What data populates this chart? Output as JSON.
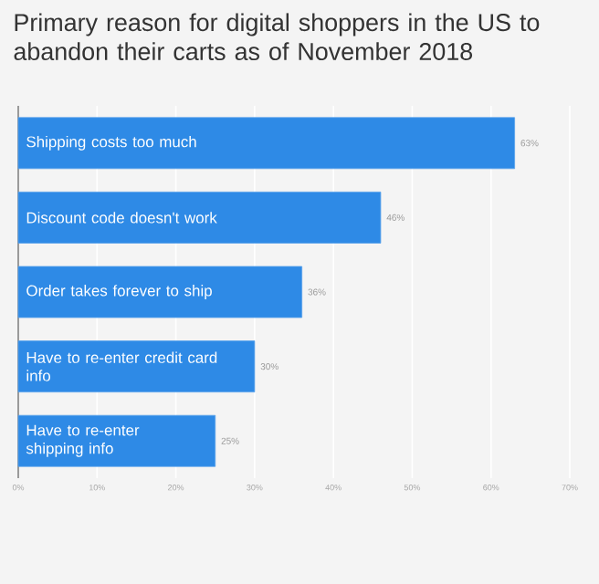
{
  "chart_data": {
    "type": "bar",
    "orientation": "horizontal",
    "title": "Primary reason for digital shoppers in the US to abandon their carts as of November 2018",
    "categories": [
      "Shipping costs too much",
      "Discount code doesn't work",
      "Order takes forever to ship",
      "Have to re-enter credit card info",
      "Have to re-enter shipping info"
    ],
    "values": [
      63,
      46,
      36,
      30,
      25
    ],
    "value_labels": [
      "63%",
      "46%",
      "36%",
      "30%",
      "25%"
    ],
    "color": "#2e8ae6",
    "xlim": [
      0,
      70
    ],
    "xticks": [
      {
        "value": 0,
        "label": "0%"
      },
      {
        "value": 10,
        "label": "10%"
      },
      {
        "value": 20,
        "label": "20%"
      },
      {
        "value": 30,
        "label": "30%"
      },
      {
        "value": 40,
        "label": "40%"
      },
      {
        "value": 50,
        "label": "50%"
      },
      {
        "value": 60,
        "label": "60%"
      },
      {
        "value": 70,
        "label": "70%"
      }
    ],
    "grid": "x"
  }
}
